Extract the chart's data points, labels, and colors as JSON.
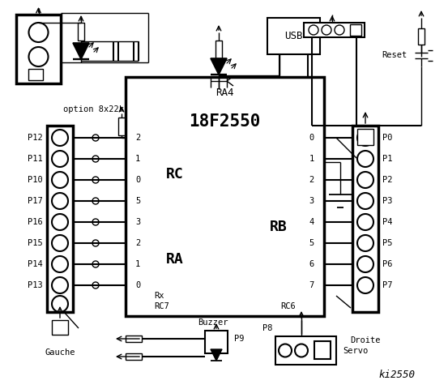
{
  "title": "ki2550",
  "bg_color": "#ffffff",
  "chip_label": "18F2550",
  "chip_sublabel": "RA4",
  "rc_label": "RC",
  "ra_label": "RA",
  "rb_label": "RB",
  "rc_pins": [
    "2",
    "1",
    "0",
    "5",
    "3",
    "2",
    "1",
    "0"
  ],
  "rb_pins": [
    "0",
    "1",
    "2",
    "3",
    "4",
    "5",
    "6",
    "7"
  ],
  "left_labels": [
    "P12",
    "P11",
    "P10",
    "P17",
    "P16",
    "P15",
    "P14",
    "P13"
  ],
  "right_labels": [
    "P0",
    "P1",
    "P2",
    "P3",
    "P4",
    "P5",
    "P6",
    "P7"
  ],
  "gauche_label": "Gauche",
  "droite_label": "Droite",
  "reset_label": "Reset",
  "usb_label": "USB",
  "rx_label": "Rx",
  "rc7_label": "RC7",
  "rc6_label": "RC6",
  "p9_label": "P9",
  "p8_label": "P8",
  "buzzer_label": "Buzzer",
  "servo_label": "Servo",
  "option_label": "option 8x22k"
}
